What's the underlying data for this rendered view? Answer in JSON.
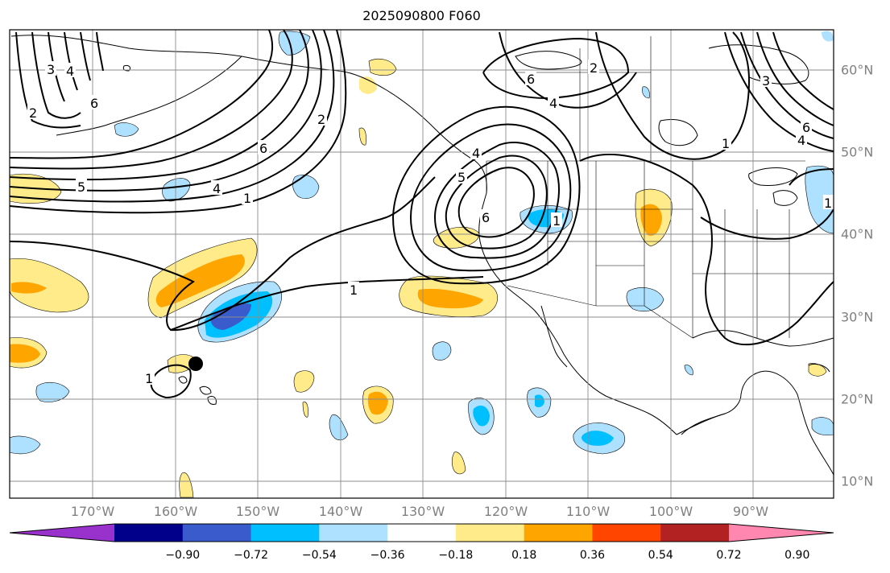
{
  "title": "2025090800 F060",
  "longitude_labels": [
    "170°W",
    "160°W",
    "150°W",
    "140°W",
    "130°W",
    "120°W",
    "110°W",
    "100°W",
    "90°W"
  ],
  "latitude_labels": [
    "60°N",
    "50°N",
    "40°N",
    "30°N",
    "20°N",
    "10°N"
  ],
  "colorbar": {
    "tick_labels": [
      "−0.90",
      "−0.72",
      "−0.54",
      "−0.36",
      "−0.18",
      "0.18",
      "0.36",
      "0.54",
      "0.72",
      "0.90"
    ],
    "colors": [
      "#9932cc",
      "#00008b",
      "#3a5bcc",
      "#00bfff",
      "#aee0ff",
      "#ffffff",
      "#ffeb8a",
      "#ffa500",
      "#ff4500",
      "#b22222",
      "#ff87b0"
    ]
  },
  "contour_labels": [
    "3",
    "4",
    "2",
    "6",
    "1",
    "5",
    "4",
    "1",
    "2",
    "1",
    "6",
    "4",
    "5",
    "6",
    "2",
    "6",
    "4",
    "1",
    "3",
    "6",
    "4",
    "1",
    "1"
  ],
  "marker": "storm-center"
}
